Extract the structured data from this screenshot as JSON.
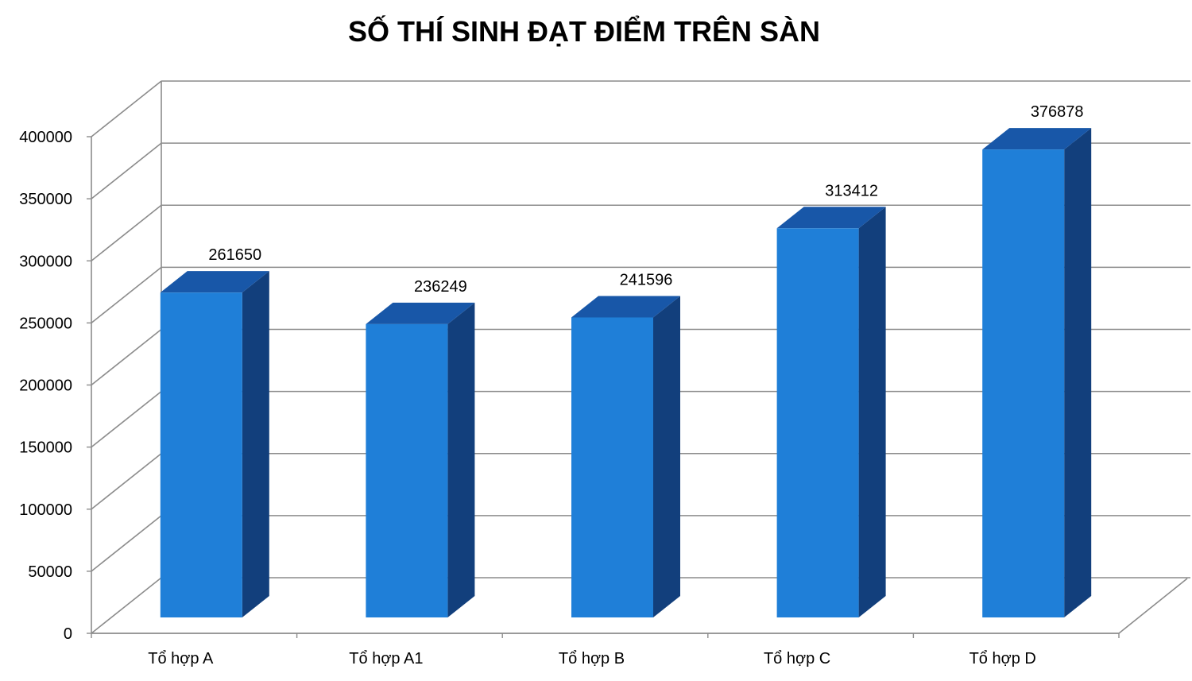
{
  "chart_data": {
    "type": "bar",
    "title": "SỐ THÍ SINH ĐẠT ĐIỂM TRÊN SÀN",
    "categories": [
      "Tổ hợp A",
      "Tổ hợp A1",
      "Tổ hợp B",
      "Tổ hợp C",
      "Tổ hợp D"
    ],
    "values": [
      261650,
      236249,
      241596,
      313412,
      376878
    ],
    "data_labels": [
      "261650",
      "236249",
      "241596",
      "313412",
      "376878"
    ],
    "y_ticks": [
      0,
      50000,
      100000,
      150000,
      200000,
      250000,
      300000,
      350000,
      400000
    ],
    "y_tick_labels": [
      "0",
      "50000",
      "100000",
      "150000",
      "200000",
      "250000",
      "300000",
      "350000",
      "400000"
    ],
    "ylim": [
      0,
      400000
    ],
    "xlabel": "",
    "ylabel": "",
    "grid": true,
    "legend": false,
    "style": "3d-column",
    "colors": {
      "bar_front": "#1f7fd8",
      "bar_top": "#1857a8",
      "bar_side": "#123f7c",
      "grid": "#8c8c8c",
      "axis": "#8c8c8c"
    }
  }
}
